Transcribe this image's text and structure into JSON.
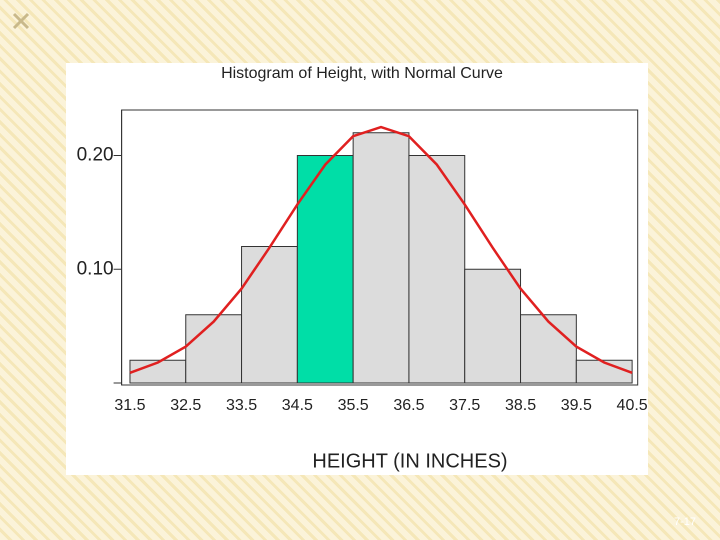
{
  "chart_data": {
    "type": "histogram",
    "title": "Histogram of Height, with Normal Curve",
    "x_label": "HEIGHT (IN INCHES)",
    "bins": [
      31.5,
      32.5,
      33.5,
      34.5,
      35.5,
      36.5,
      37.5,
      38.5,
      39.5,
      40.5
    ],
    "values": [
      0.02,
      0.06,
      0.12,
      0.2,
      0.22,
      0.2,
      0.1,
      0.06,
      0.02
    ],
    "bar_colors": [
      "#dcdcdc",
      "#dcdcdc",
      "#dcdcdc",
      "#00dea7",
      "#dcdcdc",
      "#dcdcdc",
      "#dcdcdc",
      "#dcdcdc",
      "#dcdcdc"
    ],
    "curve": {
      "color": "#e02020",
      "x": [
        31.5,
        32,
        32.5,
        33,
        33.5,
        34,
        34.5,
        35,
        35.5,
        36,
        36.5,
        37,
        37.5,
        38,
        38.5,
        39,
        39.5,
        40,
        40.5
      ],
      "values": [
        0.009,
        0.018,
        0.032,
        0.054,
        0.083,
        0.119,
        0.157,
        0.192,
        0.217,
        0.225,
        0.217,
        0.192,
        0.157,
        0.119,
        0.083,
        0.054,
        0.032,
        0.018,
        0.009
      ]
    },
    "xlim": [
      31.35,
      40.6
    ],
    "xticks": [
      31.5,
      32.5,
      33.5,
      34.5,
      35.5,
      36.5,
      37.5,
      38.5,
      39.5,
      40.5
    ],
    "ylim": [
      0,
      0.24
    ],
    "yticks": [
      {
        "value": 0.1,
        "label": "0.10"
      },
      {
        "value": 0.2,
        "label": "0.20"
      }
    ]
  },
  "slide": {
    "page_number": "7-17"
  }
}
